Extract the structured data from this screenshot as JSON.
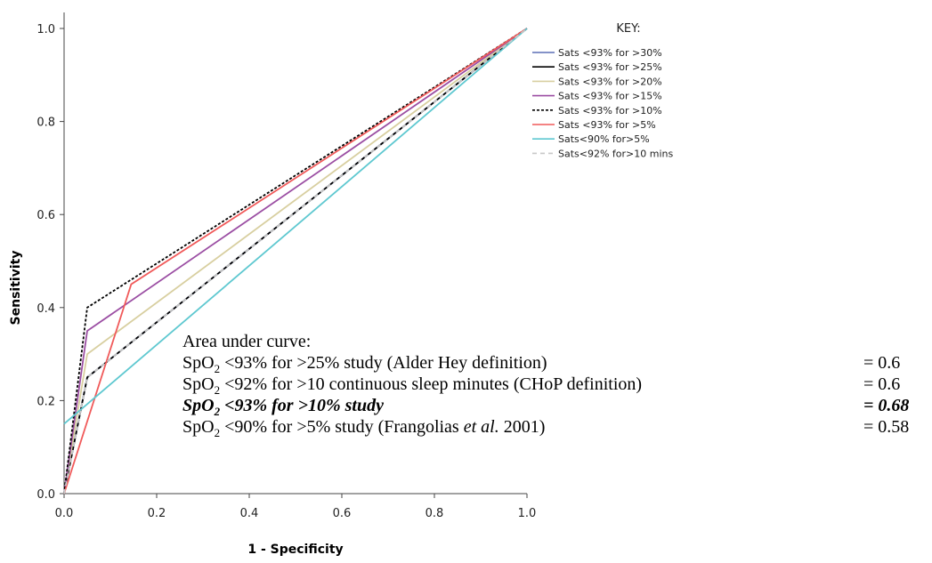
{
  "chart_data": {
    "type": "line",
    "xlabel": "1 - Specificity",
    "ylabel": "Sensitivity",
    "xlim": [
      0,
      1
    ],
    "ylim": [
      0,
      1
    ],
    "x_ticks": [
      "0.0",
      "0.2",
      "0.4",
      "0.6",
      "0.8",
      "1.0"
    ],
    "y_ticks": [
      "0.0",
      "0.2",
      "0.4",
      "0.6",
      "0.8",
      "1.0"
    ],
    "grid": false,
    "legend_title": "KEY:",
    "legend_position": "top-right",
    "series": [
      {
        "name": "Sats <93% for >30%",
        "color": "#5b6fb5",
        "dash": "solid",
        "points": [
          [
            0,
            0
          ],
          [
            0.05,
            0.25
          ],
          [
            1,
            1
          ]
        ]
      },
      {
        "name": "Sats <93% for >25%",
        "color": "#000000",
        "dash": "solid",
        "points": [
          [
            0,
            0
          ],
          [
            0.05,
            0.25
          ],
          [
            1,
            1
          ]
        ]
      },
      {
        "name": "Sats <93% for >20%",
        "color": "#d8cfa0",
        "dash": "solid",
        "points": [
          [
            0,
            0
          ],
          [
            0.05,
            0.3
          ],
          [
            1,
            1
          ]
        ]
      },
      {
        "name": "Sats <93% for >15%",
        "color": "#9b4ea3",
        "dash": "solid",
        "points": [
          [
            0,
            0
          ],
          [
            0.05,
            0.35
          ],
          [
            1,
            1
          ]
        ]
      },
      {
        "name": "Sats <93% for >10%",
        "color": "#000000",
        "dash": "dotted",
        "points": [
          [
            0,
            0
          ],
          [
            0.05,
            0.4
          ],
          [
            1,
            1
          ]
        ]
      },
      {
        "name": "Sats <93% for >5%",
        "color": "#f05a5a",
        "dash": "solid",
        "points": [
          [
            0,
            0
          ],
          [
            0.145,
            0.45
          ],
          [
            1,
            1
          ]
        ]
      },
      {
        "name": "Sats<90% for>5%",
        "color": "#5ec8d0",
        "dash": "solid",
        "points": [
          [
            0,
            0.15
          ],
          [
            1,
            1
          ]
        ]
      },
      {
        "name": "Sats<92% for>10 mins",
        "color": "#c8c8c8",
        "dash": "dashed",
        "points": [
          [
            0,
            0
          ],
          [
            0.05,
            0.25
          ],
          [
            1,
            1
          ]
        ]
      }
    ]
  },
  "auc": {
    "heading": "Area under curve:",
    "rows": [
      {
        "pre": "SpO",
        "sub": "2",
        "post": " <93% for >25% study (Alder Hey definition)",
        "value": "= 0.6",
        "bold": false
      },
      {
        "pre": "SpO",
        "sub": "2",
        "post": " <92% for >10 continuous sleep minutes (CHoP definition)",
        "value": "= 0.6",
        "bold": false
      },
      {
        "pre": "SpO",
        "sub": "2",
        "post": " <93% for >10% study",
        "value": "= 0.68",
        "bold": true
      },
      {
        "pre": "SpO",
        "sub": "2",
        "post": " <90% for >5% study (Frangolias ",
        "italic": "et al.",
        "tail": "  2001)",
        "value": "= 0.58",
        "bold": false
      }
    ]
  }
}
